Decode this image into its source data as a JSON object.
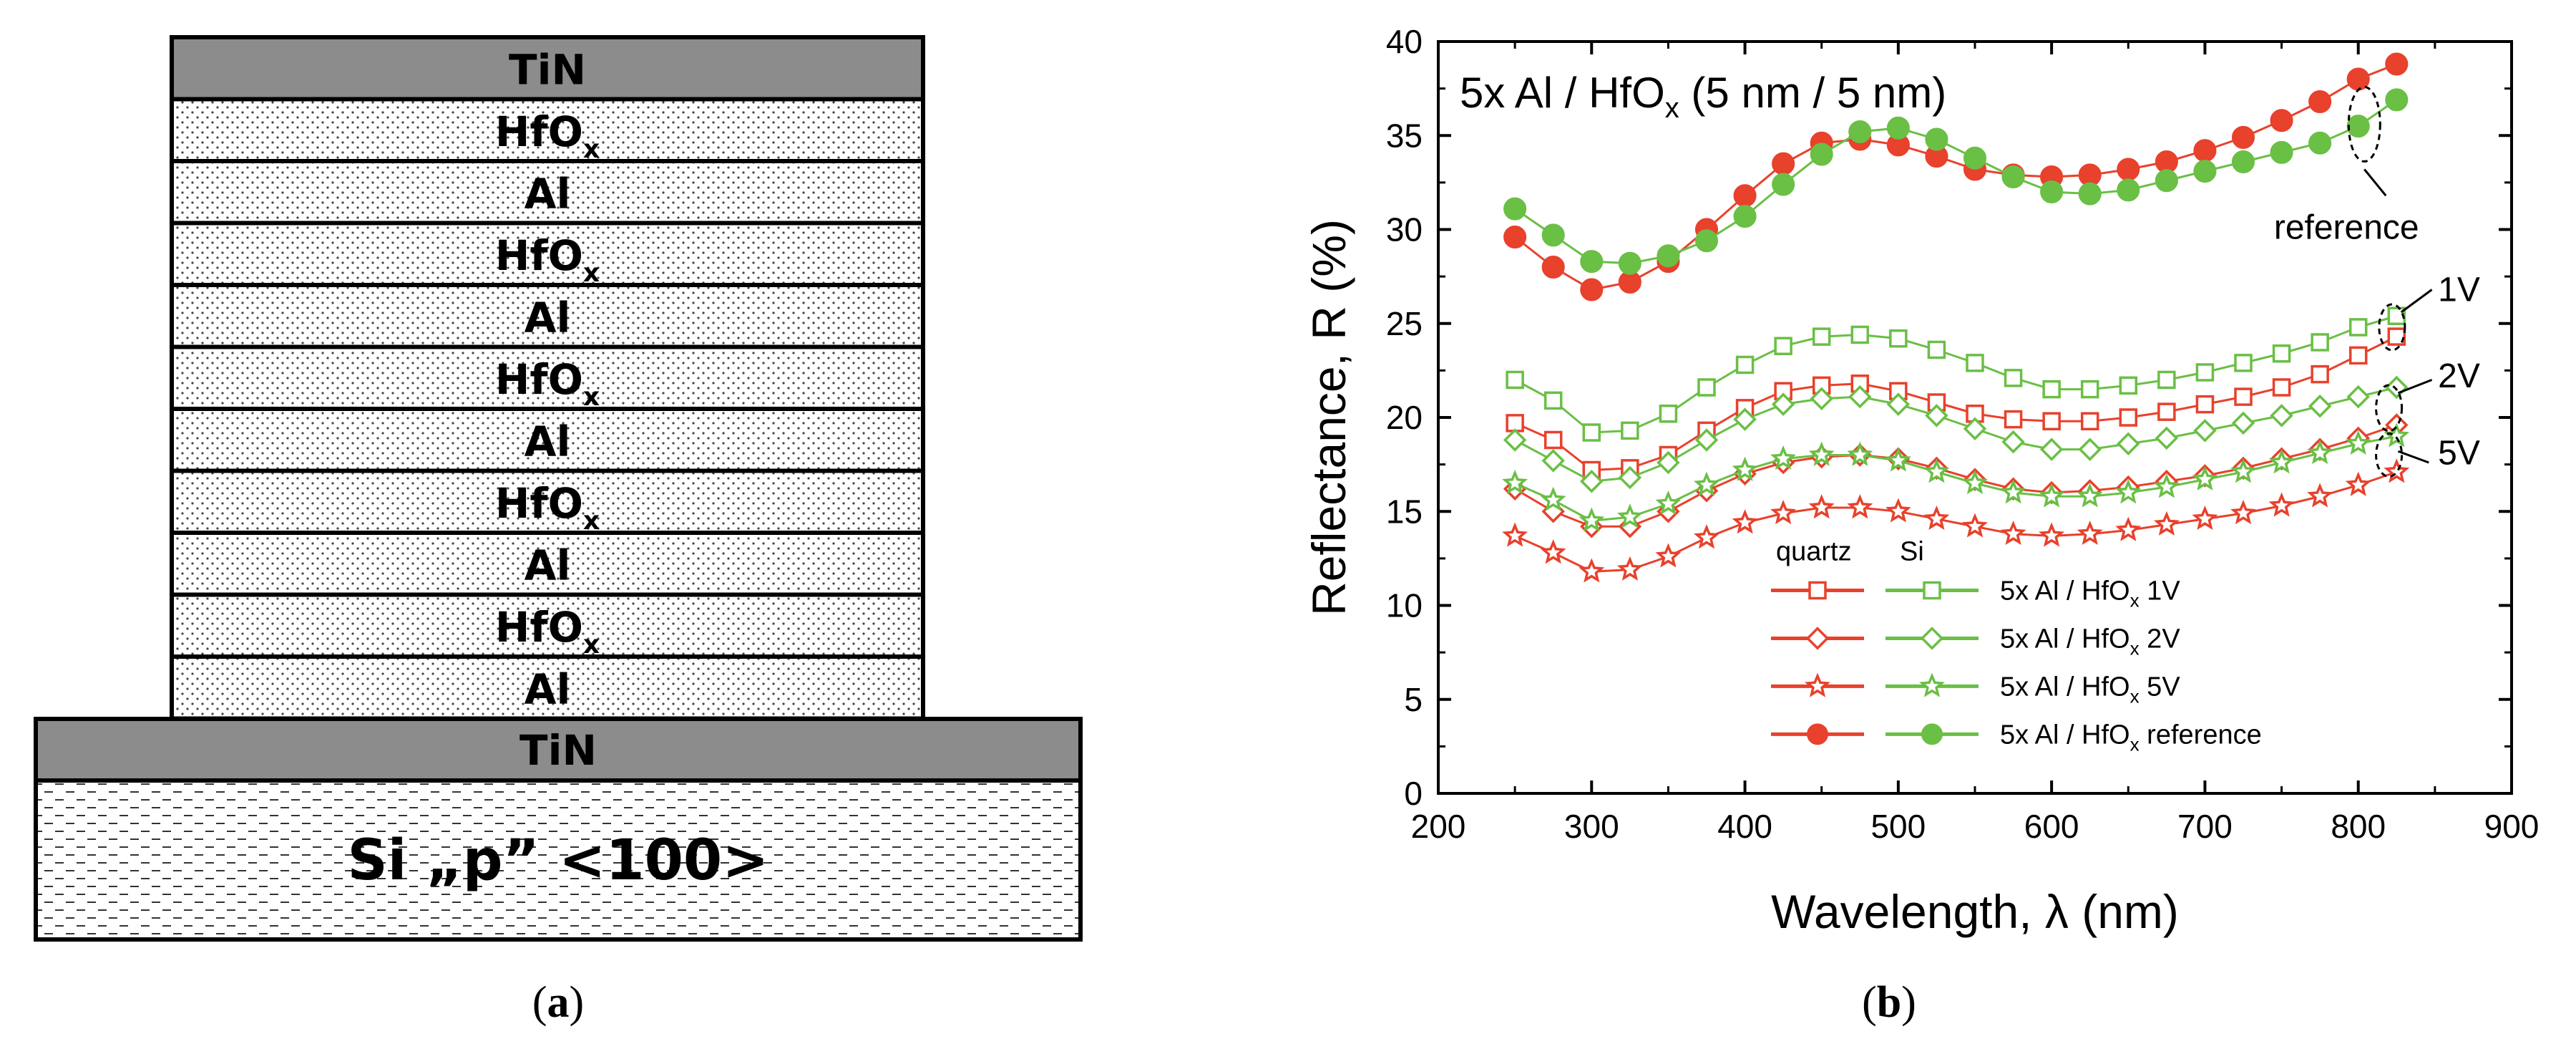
{
  "stack": {
    "layers": [
      "TiN",
      "HfOx",
      "Al",
      "HfOx",
      "Al",
      "HfOx",
      "Al",
      "HfOx",
      "Al",
      "HfOx",
      "Al"
    ],
    "bottom_tin": "TiN",
    "substrate": "Si „p” <100>",
    "colors": {
      "tin": "#8c8c8c",
      "outline": "#000000"
    }
  },
  "panels": {
    "a": "a",
    "b": "b"
  },
  "chart_data": {
    "type": "scatter",
    "title_main": "5x Al / HfO",
    "title_sub": "x",
    "title_tail": " (5 nm / 5 nm)",
    "xlabel": "Wavelength, λ (nm)",
    "ylabel": "Reflectance, R (%)",
    "xlim": [
      200,
      900
    ],
    "ylim": [
      0,
      40
    ],
    "xticks": [
      200,
      300,
      400,
      500,
      600,
      700,
      800,
      900
    ],
    "yticks": [
      0,
      5,
      10,
      15,
      20,
      25,
      30,
      35,
      40
    ],
    "x": [
      250,
      275,
      300,
      325,
      350,
      375,
      400,
      425,
      450,
      475,
      500,
      525,
      550,
      575,
      600,
      625,
      650,
      675,
      700,
      725,
      750,
      775,
      800,
      825
    ],
    "series": [
      {
        "name": "quartz 1V",
        "substrate": "quartz",
        "marker": "square",
        "filled": false,
        "color": "#e8412c",
        "values": [
          19.7,
          18.8,
          17.2,
          17.3,
          18.0,
          19.3,
          20.5,
          21.4,
          21.7,
          21.8,
          21.4,
          20.8,
          20.2,
          19.9,
          19.8,
          19.8,
          20.0,
          20.3,
          20.7,
          21.1,
          21.6,
          22.3,
          23.3,
          24.3
        ]
      },
      {
        "name": "Si 1V",
        "substrate": "Si",
        "marker": "square",
        "filled": false,
        "color": "#6abf45",
        "values": [
          22.0,
          20.9,
          19.2,
          19.3,
          20.2,
          21.6,
          22.8,
          23.8,
          24.3,
          24.4,
          24.2,
          23.6,
          22.9,
          22.1,
          21.5,
          21.5,
          21.7,
          22.0,
          22.4,
          22.9,
          23.4,
          24.0,
          24.8,
          25.4
        ]
      },
      {
        "name": "quartz 2V",
        "substrate": "quartz",
        "marker": "diamond",
        "filled": false,
        "color": "#e8412c",
        "values": [
          16.2,
          15.0,
          14.2,
          14.2,
          15.0,
          16.1,
          17.0,
          17.6,
          17.9,
          18.0,
          17.8,
          17.3,
          16.7,
          16.2,
          16.0,
          16.1,
          16.3,
          16.6,
          16.9,
          17.3,
          17.8,
          18.3,
          18.9,
          19.6
        ]
      },
      {
        "name": "Si 2V",
        "substrate": "Si",
        "marker": "diamond",
        "filled": false,
        "color": "#6abf45",
        "values": [
          18.8,
          17.7,
          16.6,
          16.8,
          17.6,
          18.8,
          19.9,
          20.7,
          21.0,
          21.1,
          20.7,
          20.1,
          19.4,
          18.7,
          18.3,
          18.3,
          18.6,
          18.9,
          19.3,
          19.7,
          20.1,
          20.6,
          21.1,
          21.6
        ]
      },
      {
        "name": "quartz 5V",
        "substrate": "quartz",
        "marker": "star",
        "filled": false,
        "color": "#e8412c",
        "values": [
          13.7,
          12.8,
          11.8,
          11.9,
          12.6,
          13.6,
          14.4,
          14.9,
          15.2,
          15.2,
          15.0,
          14.6,
          14.2,
          13.8,
          13.7,
          13.8,
          14.0,
          14.3,
          14.6,
          14.9,
          15.3,
          15.8,
          16.4,
          17.1
        ]
      },
      {
        "name": "Si 5V",
        "substrate": "Si",
        "marker": "star",
        "filled": false,
        "color": "#6abf45",
        "values": [
          16.5,
          15.6,
          14.5,
          14.7,
          15.4,
          16.4,
          17.2,
          17.8,
          18.0,
          18.0,
          17.7,
          17.1,
          16.5,
          16.0,
          15.8,
          15.8,
          16.0,
          16.3,
          16.7,
          17.1,
          17.6,
          18.1,
          18.6,
          19.0
        ]
      },
      {
        "name": "quartz reference",
        "substrate": "quartz",
        "marker": "circle",
        "filled": true,
        "color": "#e8412c",
        "values": [
          29.6,
          28.0,
          26.8,
          27.2,
          28.3,
          30.0,
          31.8,
          33.5,
          34.6,
          34.8,
          34.5,
          33.9,
          33.2,
          32.9,
          32.8,
          32.9,
          33.2,
          33.6,
          34.2,
          34.9,
          35.8,
          36.8,
          38.0,
          38.8
        ]
      },
      {
        "name": "Si reference",
        "substrate": "Si",
        "marker": "circle",
        "filled": true,
        "color": "#6abf45",
        "values": [
          31.1,
          29.7,
          28.3,
          28.2,
          28.6,
          29.4,
          30.7,
          32.4,
          34.0,
          35.2,
          35.4,
          34.8,
          33.8,
          32.8,
          32.0,
          31.9,
          32.1,
          32.6,
          33.1,
          33.6,
          34.1,
          34.6,
          35.5,
          36.9
        ]
      }
    ],
    "legend": {
      "headers": [
        "quartz",
        "Si"
      ],
      "rows": [
        {
          "text": "5x Al / HfO",
          "sub": "x",
          "suffix": " 1V",
          "marker": "square",
          "filled": false
        },
        {
          "text": "5x Al / HfO",
          "sub": "x",
          "suffix": " 2V",
          "marker": "diamond",
          "filled": false
        },
        {
          "text": "5x Al / HfO",
          "sub": "x",
          "suffix": " 5V",
          "marker": "star",
          "filled": false
        },
        {
          "text": "5x Al / HfO",
          "sub": "x",
          "suffix": " reference",
          "marker": "circle",
          "filled": true
        }
      ]
    },
    "annotations": [
      "reference",
      "1V",
      "2V",
      "5V"
    ]
  }
}
